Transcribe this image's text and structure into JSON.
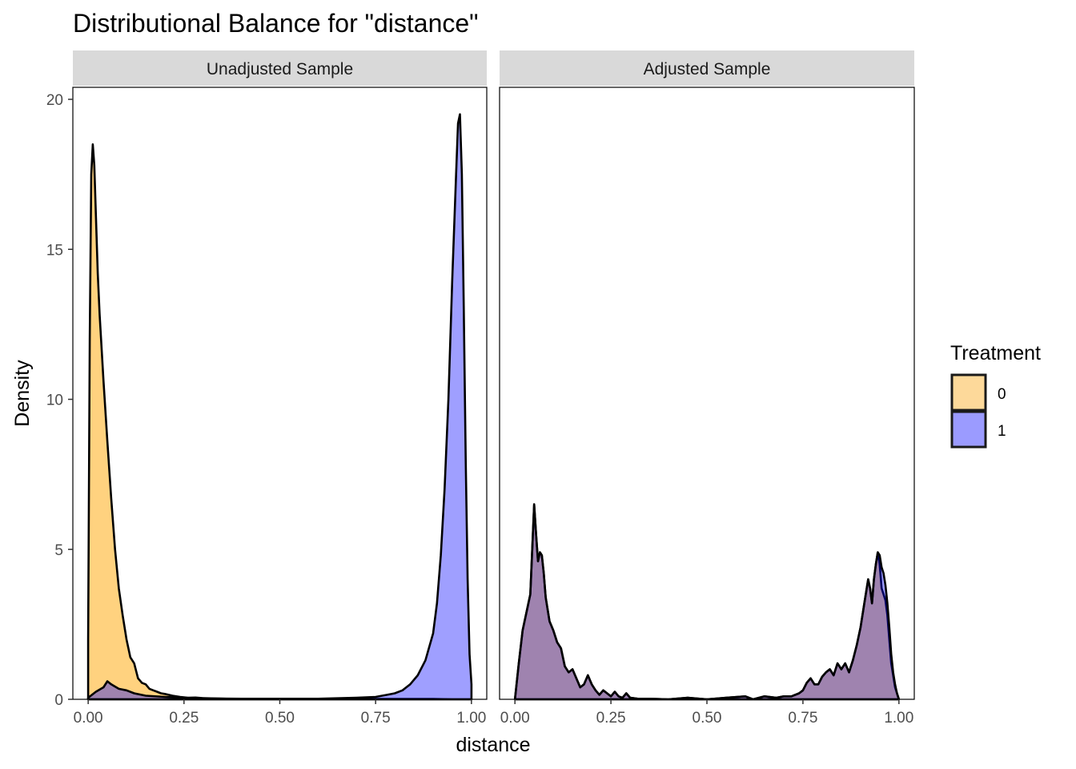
{
  "chart_data": {
    "type": "area",
    "title": "Distributional Balance for \"distance\"",
    "xlabel": "distance",
    "ylabel": "Density",
    "xlim": [
      -0.04,
      1.04
    ],
    "ylim": [
      0,
      20.5
    ],
    "x_ticks": [
      0,
      0.25,
      0.5,
      0.75,
      1.0
    ],
    "x_tick_labels": [
      "0.00",
      "0.25",
      "0.50",
      "0.75",
      "1.00"
    ],
    "y_ticks": [
      0,
      5,
      10,
      15,
      20
    ],
    "y_tick_labels": [
      "0",
      "5",
      "10",
      "15",
      "20"
    ],
    "grid": false,
    "legend": {
      "title": "Treatment",
      "position": "right",
      "entries": [
        {
          "label": "0",
          "color": "#fdd99a"
        },
        {
          "label": "1",
          "color": "#9b9bff"
        }
      ]
    },
    "panels": [
      {
        "strip_label": "Unadjusted Sample",
        "series": [
          {
            "treatment": "0",
            "fill": "#ffa50080",
            "x": [
              0.0,
              0.004,
              0.008,
              0.012,
              0.016,
              0.02,
              0.025,
              0.03,
              0.04,
              0.05,
              0.06,
              0.07,
              0.08,
              0.09,
              0.1,
              0.11,
              0.12,
              0.13,
              0.14,
              0.15,
              0.16,
              0.17,
              0.18,
              0.19,
              0.2,
              0.22,
              0.24,
              0.26,
              0.28,
              0.3,
              0.33,
              0.36,
              0.4,
              0.45,
              0.5,
              0.6,
              0.7,
              0.8,
              0.9,
              0.95,
              1.0
            ],
            "y": [
              2.0,
              12.0,
              17.5,
              18.5,
              17.8,
              16.2,
              14.2,
              12.8,
              10.6,
              8.6,
              6.7,
              5.0,
              3.7,
              2.8,
              2.0,
              1.4,
              1.2,
              0.7,
              0.55,
              0.5,
              0.35,
              0.3,
              0.25,
              0.2,
              0.18,
              0.12,
              0.08,
              0.05,
              0.06,
              0.04,
              0.03,
              0.02,
              0.02,
              0.01,
              0.01,
              0.01,
              0.01,
              0.01,
              0.01,
              0.0,
              0.0
            ]
          },
          {
            "treatment": "1",
            "fill": "#0000ff60",
            "x": [
              0.0,
              0.02,
              0.04,
              0.05,
              0.06,
              0.08,
              0.1,
              0.12,
              0.15,
              0.2,
              0.25,
              0.3,
              0.4,
              0.5,
              0.6,
              0.7,
              0.75,
              0.78,
              0.8,
              0.82,
              0.84,
              0.86,
              0.88,
              0.9,
              0.91,
              0.92,
              0.93,
              0.94,
              0.95,
              0.96,
              0.965,
              0.97,
              0.975,
              0.98,
              0.985,
              0.99,
              0.995,
              1.0
            ],
            "y": [
              0.05,
              0.25,
              0.4,
              0.6,
              0.5,
              0.35,
              0.3,
              0.2,
              0.12,
              0.08,
              0.05,
              0.03,
              0.02,
              0.02,
              0.02,
              0.05,
              0.08,
              0.15,
              0.2,
              0.3,
              0.5,
              0.8,
              1.3,
              2.2,
              3.2,
              4.8,
              7.0,
              10.0,
              14.0,
              17.5,
              19.2,
              19.5,
              17.5,
              13.0,
              8.0,
              4.0,
              1.5,
              0.5
            ]
          }
        ]
      },
      {
        "strip_label": "Adjusted Sample",
        "series": [
          {
            "treatment": "0",
            "fill": "#ffa50080",
            "x": [
              0.0,
              0.01,
              0.02,
              0.03,
              0.04,
              0.045,
              0.05,
              0.055,
              0.06,
              0.065,
              0.07,
              0.075,
              0.08,
              0.09,
              0.1,
              0.11,
              0.12,
              0.13,
              0.14,
              0.15,
              0.16,
              0.17,
              0.18,
              0.19,
              0.2,
              0.21,
              0.22,
              0.23,
              0.24,
              0.25,
              0.26,
              0.27,
              0.28,
              0.29,
              0.3,
              0.32,
              0.35,
              0.4,
              0.45,
              0.5,
              0.55,
              0.6,
              0.62,
              0.65,
              0.68,
              0.7,
              0.72,
              0.74,
              0.75,
              0.76,
              0.77,
              0.78,
              0.79,
              0.8,
              0.81,
              0.82,
              0.83,
              0.84,
              0.85,
              0.86,
              0.87,
              0.88,
              0.89,
              0.9,
              0.91,
              0.92,
              0.925,
              0.93,
              0.935,
              0.94,
              0.945,
              0.95,
              0.955,
              0.96,
              0.965,
              0.97,
              0.975,
              0.98,
              0.985,
              0.99,
              0.995,
              1.0
            ],
            "y": [
              0.0,
              1.2,
              2.3,
              2.9,
              3.5,
              5.0,
              6.5,
              5.5,
              4.6,
              4.9,
              4.8,
              4.2,
              3.4,
              2.6,
              2.3,
              1.9,
              1.7,
              1.1,
              0.9,
              1.0,
              0.7,
              0.4,
              0.5,
              0.8,
              0.5,
              0.3,
              0.15,
              0.3,
              0.2,
              0.1,
              0.25,
              0.1,
              0.05,
              0.2,
              0.05,
              0.02,
              0.02,
              0.0,
              0.05,
              0.0,
              0.05,
              0.1,
              0.0,
              0.1,
              0.05,
              0.1,
              0.1,
              0.2,
              0.3,
              0.55,
              0.7,
              0.5,
              0.5,
              0.75,
              0.9,
              1.0,
              0.8,
              1.2,
              1.0,
              1.2,
              0.9,
              1.3,
              1.8,
              2.4,
              3.2,
              4.0,
              3.7,
              3.2,
              4.0,
              4.5,
              4.9,
              4.5,
              3.7,
              3.5,
              3.3,
              2.8,
              2.0,
              1.2,
              0.8,
              0.4,
              0.2,
              0.0
            ]
          },
          {
            "treatment": "1",
            "fill": "#0000ff60",
            "x": [
              0.0,
              0.01,
              0.02,
              0.03,
              0.04,
              0.045,
              0.05,
              0.055,
              0.06,
              0.065,
              0.07,
              0.075,
              0.08,
              0.09,
              0.1,
              0.11,
              0.12,
              0.13,
              0.14,
              0.15,
              0.16,
              0.17,
              0.18,
              0.19,
              0.2,
              0.21,
              0.22,
              0.23,
              0.24,
              0.25,
              0.26,
              0.27,
              0.28,
              0.29,
              0.3,
              0.32,
              0.35,
              0.4,
              0.45,
              0.5,
              0.55,
              0.6,
              0.62,
              0.65,
              0.68,
              0.7,
              0.72,
              0.74,
              0.75,
              0.76,
              0.77,
              0.78,
              0.79,
              0.8,
              0.81,
              0.82,
              0.83,
              0.84,
              0.85,
              0.86,
              0.87,
              0.88,
              0.89,
              0.9,
              0.91,
              0.92,
              0.925,
              0.93,
              0.935,
              0.94,
              0.945,
              0.95,
              0.955,
              0.96,
              0.965,
              0.97,
              0.975,
              0.98,
              0.985,
              0.99,
              0.995,
              1.0
            ],
            "y": [
              0.0,
              1.2,
              2.3,
              2.9,
              3.5,
              5.0,
              6.5,
              5.5,
              4.6,
              4.9,
              4.8,
              4.2,
              3.4,
              2.6,
              2.3,
              1.9,
              1.7,
              1.1,
              0.9,
              1.0,
              0.7,
              0.4,
              0.5,
              0.8,
              0.5,
              0.3,
              0.15,
              0.3,
              0.2,
              0.1,
              0.25,
              0.1,
              0.05,
              0.2,
              0.05,
              0.02,
              0.02,
              0.0,
              0.05,
              0.0,
              0.05,
              0.1,
              0.0,
              0.1,
              0.05,
              0.1,
              0.1,
              0.2,
              0.3,
              0.55,
              0.7,
              0.5,
              0.5,
              0.75,
              0.9,
              1.0,
              0.8,
              1.2,
              1.0,
              1.2,
              0.9,
              1.3,
              1.8,
              2.4,
              3.2,
              4.0,
              3.7,
              3.2,
              4.0,
              4.5,
              4.9,
              4.8,
              4.4,
              4.2,
              3.8,
              3.2,
              2.4,
              1.5,
              0.9,
              0.5,
              0.2,
              0.0
            ]
          }
        ]
      }
    ]
  }
}
